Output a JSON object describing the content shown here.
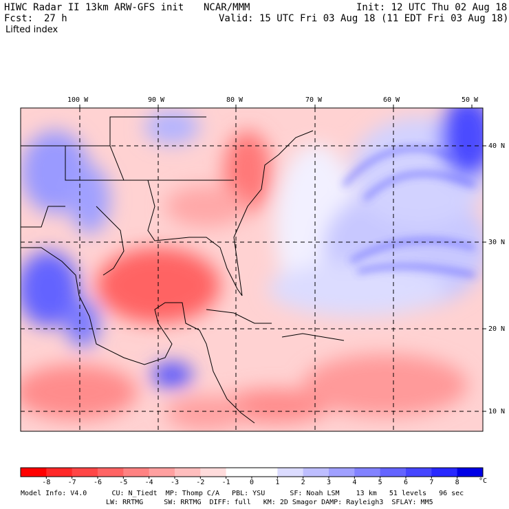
{
  "header": {
    "title": "HIWC Radar II 13km ARW-GFS init",
    "org": "NCAR/MMM",
    "init": "Init: 12 UTC Thu 02 Aug 18",
    "fcst_label": "Fcst:",
    "fcst_value": "27 h",
    "valid": "Valid: 15 UTC Fri 03 Aug 18 (11 EDT Fri 03 Aug 18)",
    "field": "Lifted index"
  },
  "map": {
    "lon_labels": [
      "100 W",
      "90 W",
      "80 W",
      "70 W",
      "60 W",
      "50 W"
    ],
    "lat_labels": [
      "40 N",
      "30 N",
      "20 N",
      "10 N"
    ],
    "colors": {
      "border": "#000000",
      "gridline": "#000000",
      "positive_max": "#0000e6",
      "negative_max": "#ff0000"
    }
  },
  "colorbar": {
    "levels": [
      "-8",
      "-7",
      "-6",
      "-5",
      "-4",
      "-3",
      "-2",
      "-1",
      "0",
      "1",
      "2",
      "3",
      "4",
      "5",
      "6",
      "7",
      "8"
    ],
    "unit": "°C",
    "colors": [
      "#ff0000",
      "#ff2828",
      "#ff4646",
      "#ff6464",
      "#ff8282",
      "#ffa0a0",
      "#ffbebe",
      "#ffdcdc",
      "#ffffff",
      "#dcdcff",
      "#bebeff",
      "#a0a0ff",
      "#8282ff",
      "#6464ff",
      "#4646ff",
      "#2828ff",
      "#0000e6"
    ]
  },
  "footer": {
    "line1": "Model Info: V4.0      CU: N_Tiedt  MP: Thomp C/A   PBL: YSU      SF: Noah LSM    13 km   51 levels   96 sec",
    "line2": "LW: RRTMG     SW: RRTMG  DIFF: full   KM: 2D Smagor DAMP: Rayleigh3  SFLAY: MM5"
  }
}
